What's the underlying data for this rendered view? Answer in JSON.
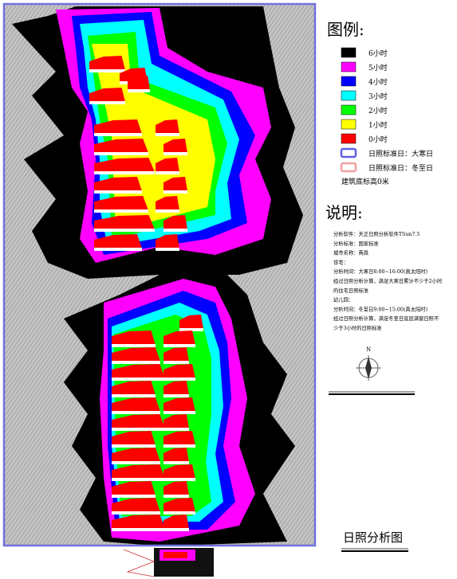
{
  "legend": {
    "title": "图例:",
    "items": [
      {
        "label": "6小时",
        "color": "#000000",
        "style": "fill"
      },
      {
        "label": "5小时",
        "color": "#ff00ff",
        "style": "fill"
      },
      {
        "label": "4小时",
        "color": "#0000ff",
        "style": "fill"
      },
      {
        "label": "3小时",
        "color": "#00ffff",
        "style": "fill"
      },
      {
        "label": "2小时",
        "color": "#00ff00",
        "style": "fill"
      },
      {
        "label": "1小时",
        "color": "#ffff00",
        "style": "fill"
      },
      {
        "label": "0小时",
        "color": "#ff0000",
        "style": "fill"
      },
      {
        "label": "日照标准日：大寒日",
        "color": "#6060e0",
        "style": "outline"
      },
      {
        "label": "日照标准日：冬至日",
        "color": "#f0a0a0",
        "style": "outline"
      }
    ],
    "note": "建筑底标高0米"
  },
  "notes": {
    "title": "说明:",
    "lines": [
      "分析软件：天正日照分析软件TSun7.5",
      "分析标准：国家标准",
      "城市名称：南昌",
      "住宅：",
      "分析时间：大寒日8:00~16:00(真太阳时)",
      "经过日照分析计算，满足大寒日累计不少于2小时",
      "的住宅日照标准",
      "幼儿园：",
      "分析时间：冬至日9:00~15:00(真太阳时)",
      "经过日照分析计算，满足冬至日底层满窗日照不",
      "少于3小时的日照标准"
    ]
  },
  "compass": {
    "label": "N"
  },
  "drawing_title": "日照分析图"
}
